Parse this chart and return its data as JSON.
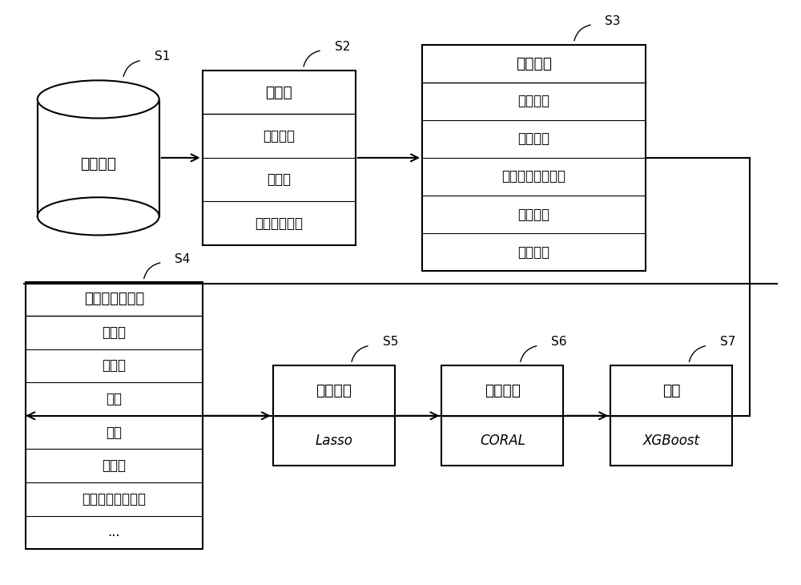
{
  "bg_color": "#ffffff",
  "s1_text": "语音信号",
  "s1_label": "S1",
  "s2_title": "预处理",
  "s2_items": [
    "高通滤波",
    "降采样",
    "移除静音片段"
  ],
  "s2_label": "S2",
  "s3_title": "特征提取",
  "s3_items": [
    "声学特征",
    "频域特征",
    "梅尔频率倒谱系数",
    "停顿特征",
    "色度特征"
  ],
  "s3_label": "S3",
  "s4_title": "特征统计量计算",
  "s4_items": [
    "最大值",
    "最小值",
    "极差",
    "均值",
    "中位数",
    "线性回归的截距项",
    "..."
  ],
  "s4_label": "S4",
  "s5_title": "特征选择",
  "s5_sub": "Lasso",
  "s5_label": "S5",
  "s6_title": "迁移学习",
  "s6_sub": "CORAL",
  "s6_label": "S6",
  "s7_title": "分类",
  "s7_sub": "XGBoost",
  "s7_label": "S7"
}
